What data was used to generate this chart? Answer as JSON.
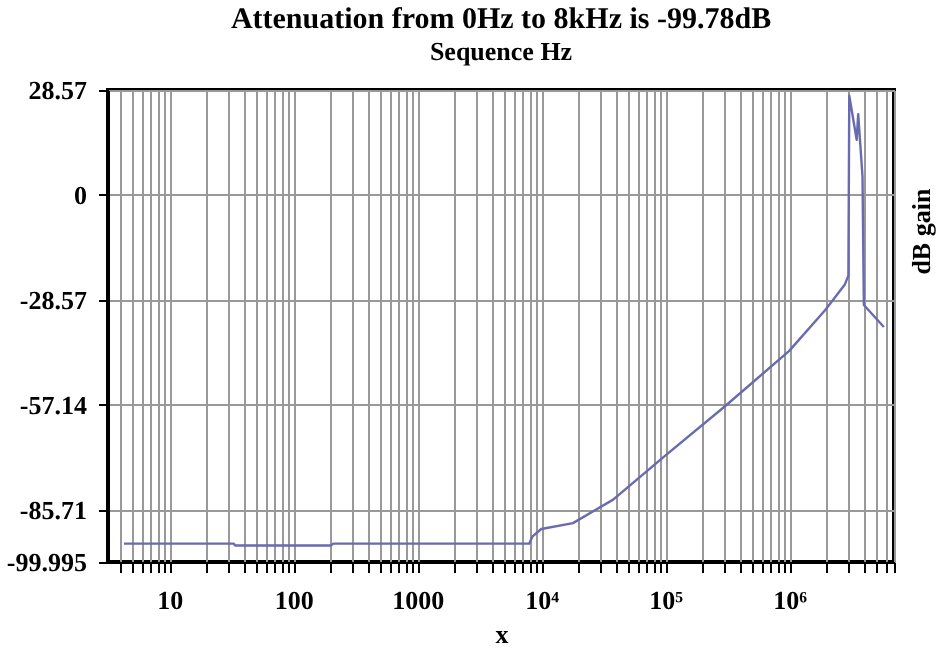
{
  "chart_data": {
    "type": "line",
    "title": "Attenuation from 0Hz to 8kHz is -99.78dB",
    "subtitle": "Sequence Hz",
    "xlabel": "x",
    "ylabel": "dB gain",
    "log": "x",
    "grid": true,
    "line_style": "solid",
    "marker": "none",
    "xlim": [
      3.2,
      7000000
    ],
    "ylim": [
      -99.995,
      28.57
    ],
    "xticks": [
      {
        "value": 4,
        "label": null
      },
      {
        "value": 5,
        "label": null
      },
      {
        "value": 6,
        "label": null
      },
      {
        "value": 7,
        "label": null
      },
      {
        "value": 8,
        "label": null
      },
      {
        "value": 9,
        "label": null
      },
      10,
      {
        "value": 20,
        "label": null
      },
      {
        "value": 30,
        "label": null
      },
      {
        "value": 40,
        "label": null
      },
      {
        "value": 50,
        "label": null
      },
      {
        "value": 60,
        "label": null
      },
      {
        "value": 70,
        "label": null
      },
      {
        "value": 80,
        "label": null
      },
      {
        "value": 90,
        "label": null
      },
      100,
      {
        "value": 200,
        "label": null
      },
      {
        "value": 300,
        "label": null
      },
      {
        "value": 400,
        "label": null
      },
      {
        "value": 500,
        "label": null
      },
      {
        "value": 600,
        "label": null
      },
      {
        "value": 700,
        "label": null
      },
      {
        "value": 800,
        "label": null
      },
      {
        "value": 900,
        "label": null
      },
      1000,
      {
        "value": 2000,
        "label": null
      },
      {
        "value": 3000,
        "label": null
      },
      {
        "value": 4000,
        "label": null
      },
      {
        "value": 5000,
        "label": null
      },
      {
        "value": 6000,
        "label": null
      },
      {
        "value": 7000,
        "label": null
      },
      {
        "value": 8000,
        "label": null
      },
      {
        "value": 9000,
        "label": null
      },
      {
        "value": 10000,
        "label": "10⁴"
      },
      {
        "value": 20000,
        "label": null
      },
      {
        "value": 30000,
        "label": null
      },
      {
        "value": 40000,
        "label": null
      },
      {
        "value": 50000,
        "label": null
      },
      {
        "value": 60000,
        "label": null
      },
      {
        "value": 70000,
        "label": null
      },
      {
        "value": 80000,
        "label": null
      },
      {
        "value": 90000,
        "label": null
      },
      {
        "value": 100000,
        "label": "10⁵"
      },
      {
        "value": 200000,
        "label": null
      },
      {
        "value": 300000,
        "label": null
      },
      {
        "value": 400000,
        "label": null
      },
      {
        "value": 500000,
        "label": null
      },
      {
        "value": 600000,
        "label": null
      },
      {
        "value": 700000,
        "label": null
      },
      {
        "value": 800000,
        "label": null
      },
      {
        "value": 900000,
        "label": null
      },
      {
        "value": 1000000,
        "label": "10⁶"
      },
      {
        "value": 2000000,
        "label": null
      },
      {
        "value": 3000000,
        "label": null
      },
      {
        "value": 4000000,
        "label": null
      },
      {
        "value": 5000000,
        "label": null
      },
      {
        "value": 6000000,
        "label": null
      },
      {
        "value": 7000000,
        "label": null
      }
    ],
    "yticks": [
      28.57,
      0,
      -28.57,
      -57.14,
      -85.71,
      -99.995
    ],
    "series": [
      {
        "color": "#6a6ab0",
        "x": [
          4.3,
          33,
          34,
          200,
          210,
          8000,
          8500,
          10000,
          18000,
          38000,
          100000,
          300000,
          1000000,
          1960000,
          2800000,
          3000000,
          3050000,
          3500000,
          3600000,
          3900000,
          4000000,
          5800000
        ],
        "values": [
          -95,
          -95,
          -95.5,
          -95.5,
          -95,
          -95,
          -93,
          -91,
          -89.4,
          -83,
          -71,
          -57.7,
          -42.5,
          -31.3,
          -24.5,
          -22,
          27,
          15,
          22,
          5,
          -30,
          -36
        ]
      }
    ]
  }
}
